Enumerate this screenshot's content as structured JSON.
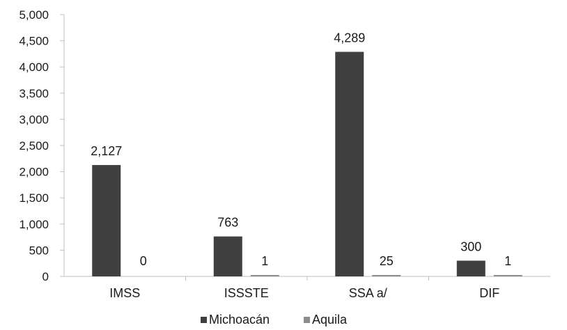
{
  "chart_data": {
    "type": "bar",
    "title": "",
    "xlabel": "",
    "ylabel": "",
    "categories": [
      "IMSS",
      "ISSSTE",
      "SSA a/",
      "DIF"
    ],
    "series": [
      {
        "name": "Michoacán",
        "values": [
          2127,
          763,
          4289,
          300
        ],
        "color": "#404040",
        "labels": [
          "2,127",
          "763",
          "4,289",
          "300"
        ]
      },
      {
        "name": "Aquila",
        "values": [
          0,
          1,
          25,
          1
        ],
        "color": "#8c8c8c",
        "labels": [
          "0",
          "1",
          "25",
          "1"
        ]
      }
    ],
    "ylim": [
      0,
      5000
    ],
    "yticks": [
      0,
      500,
      1000,
      1500,
      2000,
      2500,
      3000,
      3500,
      4000,
      4500,
      5000
    ],
    "ytick_labels": [
      "0",
      "500",
      "1,000",
      "1,500",
      "2,000",
      "2,500",
      "3,000",
      "3,500",
      "4,000",
      "4,500",
      "5,000"
    ],
    "grid": false,
    "legend_position": "bottom"
  }
}
